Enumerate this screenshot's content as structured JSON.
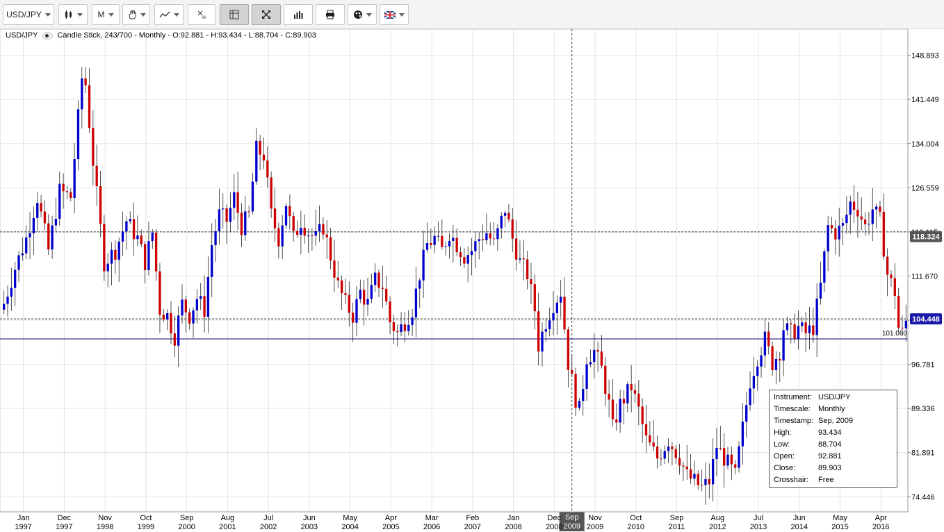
{
  "toolbar": {
    "instrument": "USD/JPY",
    "timescale": "M"
  },
  "header": {
    "symbol": "USD/JPY",
    "description": "Candle Stick, 243/700 - Monthly - O:92.881 - H:93.434 - L:88.704 - C:89.903"
  },
  "colors": {
    "up": "#0000cc",
    "down": "#cc0000",
    "grid": "#e4e4e4",
    "level": "#000080"
  },
  "chart_data": {
    "type": "candlestick",
    "y_ticks": [
      148.893,
      141.449,
      134.004,
      126.559,
      119.115,
      111.67,
      104.225,
      96.781,
      89.336,
      81.891,
      74.446
    ],
    "ylim": [
      71.9,
      153.3
    ],
    "x_ticks": [
      {
        "month": "Jan",
        "year": "1997"
      },
      {
        "month": "Dec",
        "year": "1997"
      },
      {
        "month": "Nov",
        "year": "1998"
      },
      {
        "month": "Oct",
        "year": "1999"
      },
      {
        "month": "Sep",
        "year": "2000"
      },
      {
        "month": "Aug",
        "year": "2001"
      },
      {
        "month": "Jul",
        "year": "2002"
      },
      {
        "month": "Jun",
        "year": "2003"
      },
      {
        "month": "May",
        "year": "2004"
      },
      {
        "month": "Apr",
        "year": "2005"
      },
      {
        "month": "Mar",
        "year": "2006"
      },
      {
        "month": "Feb",
        "year": "2007"
      },
      {
        "month": "Jan",
        "year": "2008"
      },
      {
        "month": "Dec",
        "year": "2008"
      },
      {
        "month": "Nov",
        "year": "2009"
      },
      {
        "month": "Oct",
        "year": "2010"
      },
      {
        "month": "Sep",
        "year": "2011"
      },
      {
        "month": "Aug",
        "year": "2012"
      },
      {
        "month": "Jul",
        "year": "2013"
      },
      {
        "month": "Jun",
        "year": "2014"
      },
      {
        "month": "May",
        "year": "2015"
      },
      {
        "month": "Apr",
        "year": "2016"
      }
    ],
    "path_anchors": [
      [
        0,
        107
      ],
      [
        3,
        113
      ],
      [
        6,
        118
      ],
      [
        9,
        125
      ],
      [
        12,
        116
      ],
      [
        15,
        126
      ],
      [
        18,
        125
      ],
      [
        21,
        145
      ],
      [
        22,
        144
      ],
      [
        24,
        131
      ],
      [
        27,
        114
      ],
      [
        30,
        116
      ],
      [
        33,
        121
      ],
      [
        36,
        118
      ],
      [
        38,
        114
      ],
      [
        40,
        119
      ],
      [
        42,
        106
      ],
      [
        44,
        105
      ],
      [
        46,
        101.5
      ],
      [
        48,
        107
      ],
      [
        50,
        105
      ],
      [
        52,
        108
      ],
      [
        54,
        106
      ],
      [
        56,
        117
      ],
      [
        58,
        122
      ],
      [
        60,
        121
      ],
      [
        62,
        125
      ],
      [
        64,
        120
      ],
      [
        66,
        122
      ],
      [
        68,
        133
      ],
      [
        70,
        132
      ],
      [
        72,
        122
      ],
      [
        74,
        118
      ],
      [
        76,
        124
      ],
      [
        78,
        118
      ],
      [
        80,
        121
      ],
      [
        82,
        119
      ],
      [
        84,
        118
      ],
      [
        86,
        120
      ],
      [
        88,
        115
      ],
      [
        90,
        110
      ],
      [
        92,
        107
      ],
      [
        94,
        105
      ],
      [
        96,
        109
      ],
      [
        98,
        107
      ],
      [
        100,
        111
      ],
      [
        102,
        110
      ],
      [
        104,
        104
      ],
      [
        106,
        102
      ],
      [
        108,
        104
      ],
      [
        110,
        106
      ],
      [
        112,
        112
      ],
      [
        114,
        117
      ],
      [
        116,
        118
      ],
      [
        118,
        116
      ],
      [
        120,
        119
      ],
      [
        122,
        117
      ],
      [
        124,
        115
      ],
      [
        126,
        116
      ],
      [
        128,
        118
      ],
      [
        130,
        119
      ],
      [
        132,
        117
      ],
      [
        134,
        121
      ],
      [
        135,
        123
      ],
      [
        137,
        118
      ],
      [
        139,
        114
      ],
      [
        141,
        112
      ],
      [
        143,
        106
      ],
      [
        144,
        100
      ],
      [
        146,
        104
      ],
      [
        148,
        107
      ],
      [
        150,
        109
      ],
      [
        152,
        97
      ],
      [
        154,
        91
      ],
      [
        155,
        89
      ],
      [
        157,
        98
      ],
      [
        159,
        99
      ],
      [
        161,
        96
      ],
      [
        163,
        90
      ],
      [
        164,
        86
      ],
      [
        166,
        90
      ],
      [
        169,
        93
      ],
      [
        171,
        89
      ],
      [
        173,
        84
      ],
      [
        176,
        81
      ],
      [
        179,
        84
      ],
      [
        182,
        81
      ],
      [
        184,
        78
      ],
      [
        186,
        77
      ],
      [
        188,
        76
      ],
      [
        190,
        77
      ],
      [
        192,
        83
      ],
      [
        195,
        80
      ],
      [
        197,
        78
      ],
      [
        199,
        86
      ],
      [
        201,
        94
      ],
      [
        203,
        98
      ],
      [
        205,
        101
      ],
      [
        207,
        97
      ],
      [
        209,
        99
      ],
      [
        210,
        103
      ],
      [
        212,
        102
      ],
      [
        214,
        103
      ],
      [
        216,
        102
      ],
      [
        218,
        103
      ],
      [
        220,
        110
      ],
      [
        222,
        120
      ],
      [
        224,
        119
      ],
      [
        226,
        120
      ],
      [
        228,
        124
      ],
      [
        230,
        123
      ],
      [
        232,
        120
      ],
      [
        234,
        123
      ],
      [
        236,
        121
      ],
      [
        238,
        112
      ],
      [
        240,
        109
      ],
      [
        241,
        103
      ],
      [
        242,
        102
      ],
      [
        243,
        104
      ]
    ],
    "horizontal_lines": [
      {
        "value": 119.115,
        "style": "dashed"
      },
      {
        "value": 104.448,
        "style": "dashed"
      },
      {
        "value": 101.06,
        "style": "solid"
      }
    ],
    "price_badges": [
      {
        "value": 118.324,
        "label": "118.324",
        "color": "#555555"
      },
      {
        "value": 104.448,
        "label": "104.448",
        "color": "#1a1aaa"
      }
    ],
    "level_label": "101.060",
    "crosshair": {
      "index": 153,
      "month": "Sep",
      "year": "2009"
    }
  },
  "infobox": {
    "rows": [
      {
        "k": "Instrument:",
        "v": "USD/JPY"
      },
      {
        "k": "Timescale:",
        "v": "Monthly"
      },
      {
        "k": "Timestamp:",
        "v": "Sep, 2009"
      },
      {
        "k": "High:",
        "v": "93.434"
      },
      {
        "k": "Low:",
        "v": "88.704"
      },
      {
        "k": "Open:",
        "v": "92.881"
      },
      {
        "k": "Close:",
        "v": "89.903"
      },
      {
        "k": "Crosshair:",
        "v": "Free"
      }
    ]
  }
}
